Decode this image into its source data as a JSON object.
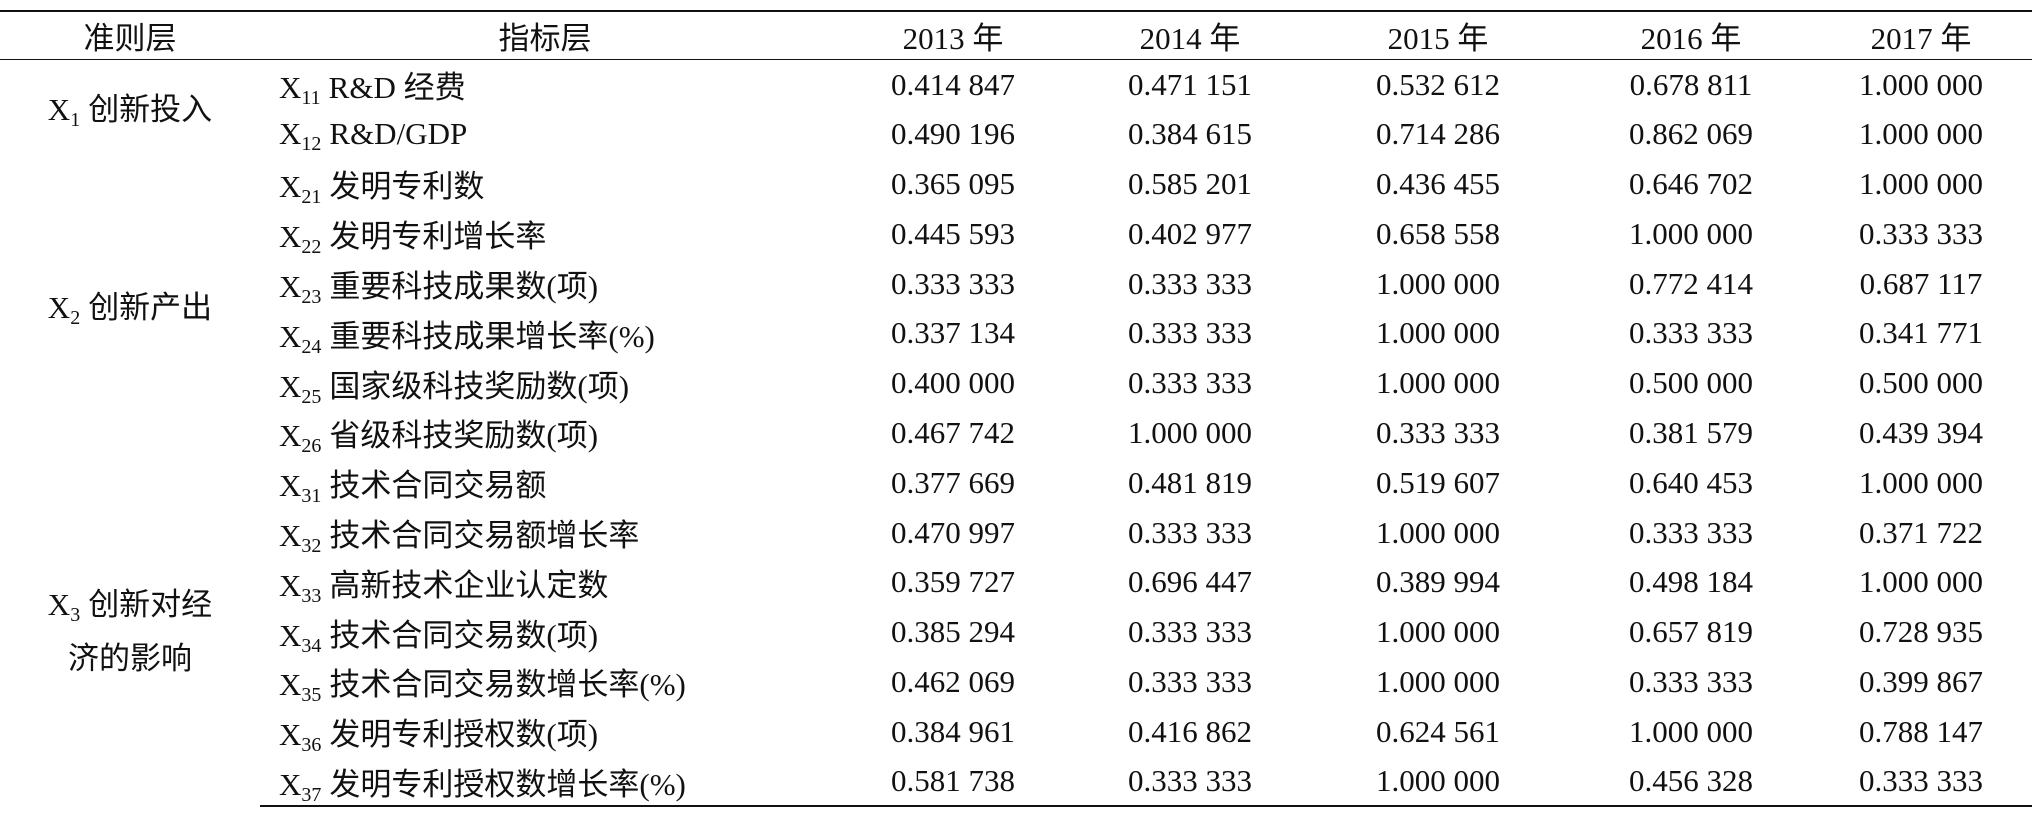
{
  "table": {
    "header": [
      "准则层",
      "指标层",
      "2013 年",
      "2014 年",
      "2015 年",
      "2016 年",
      "2017 年"
    ],
    "groups": [
      {
        "criterion": {
          "sym": "X",
          "sub": "1",
          "label": "创新投入"
        },
        "rows": [
          {
            "indicator": {
              "sym": "X",
              "sub": "11",
              "label": "R&D 经费"
            },
            "values": [
              "0.414 847",
              "0.471 151",
              "0.532 612",
              "0.678 811",
              "1.000 000"
            ]
          },
          {
            "indicator": {
              "sym": "X",
              "sub": "12",
              "label": "R&D/GDP"
            },
            "values": [
              "0.490 196",
              "0.384 615",
              "0.714 286",
              "0.862 069",
              "1.000 000"
            ]
          }
        ]
      },
      {
        "criterion": {
          "sym": "X",
          "sub": "2",
          "label": "创新产出"
        },
        "rows": [
          {
            "indicator": {
              "sym": "X",
              "sub": "21",
              "label": "发明专利数"
            },
            "values": [
              "0.365 095",
              "0.585 201",
              "0.436 455",
              "0.646 702",
              "1.000 000"
            ]
          },
          {
            "indicator": {
              "sym": "X",
              "sub": "22",
              "label": "发明专利增长率"
            },
            "values": [
              "0.445 593",
              "0.402 977",
              "0.658 558",
              "1.000 000",
              "0.333 333"
            ]
          },
          {
            "indicator": {
              "sym": "X",
              "sub": "23",
              "label": "重要科技成果数(项)"
            },
            "values": [
              "0.333 333",
              "0.333 333",
              "1.000 000",
              "0.772 414",
              "0.687 117"
            ]
          },
          {
            "indicator": {
              "sym": "X",
              "sub": "24",
              "label": "重要科技成果增长率(%)"
            },
            "values": [
              "0.337 134",
              "0.333 333",
              "1.000 000",
              "0.333 333",
              "0.341 771"
            ]
          },
          {
            "indicator": {
              "sym": "X",
              "sub": "25",
              "label": "国家级科技奖励数(项)"
            },
            "values": [
              "0.400 000",
              "0.333 333",
              "1.000 000",
              "0.500 000",
              "0.500 000"
            ]
          },
          {
            "indicator": {
              "sym": "X",
              "sub": "26",
              "label": "省级科技奖励数(项)"
            },
            "values": [
              "0.467 742",
              "1.000 000",
              "0.333 333",
              "0.381 579",
              "0.439 394"
            ]
          }
        ]
      },
      {
        "criterion": {
          "sym": "X",
          "sub": "3",
          "label": "创新对经济的影响"
        },
        "rows": [
          {
            "indicator": {
              "sym": "X",
              "sub": "31",
              "label": "技术合同交易额"
            },
            "values": [
              "0.377 669",
              "0.481 819",
              "0.519 607",
              "0.640 453",
              "1.000 000"
            ]
          },
          {
            "indicator": {
              "sym": "X",
              "sub": "32",
              "label": "技术合同交易额增长率"
            },
            "values": [
              "0.470 997",
              "0.333 333",
              "1.000 000",
              "0.333 333",
              "0.371 722"
            ]
          },
          {
            "indicator": {
              "sym": "X",
              "sub": "33",
              "label": "高新技术企业认定数"
            },
            "values": [
              "0.359 727",
              "0.696 447",
              "0.389 994",
              "0.498 184",
              "1.000 000"
            ]
          },
          {
            "indicator": {
              "sym": "X",
              "sub": "34",
              "label": "技术合同交易数(项)"
            },
            "values": [
              "0.385 294",
              "0.333 333",
              "1.000 000",
              "0.657 819",
              "0.728 935"
            ]
          },
          {
            "indicator": {
              "sym": "X",
              "sub": "35",
              "label": "技术合同交易数增长率(%)"
            },
            "values": [
              "0.462 069",
              "0.333 333",
              "1.000 000",
              "0.333 333",
              "0.399 867"
            ]
          },
          {
            "indicator": {
              "sym": "X",
              "sub": "36",
              "label": "发明专利授权数(项)"
            },
            "values": [
              "0.384 961",
              "0.416 862",
              "0.624 561",
              "1.000 000",
              "0.788 147"
            ]
          },
          {
            "indicator": {
              "sym": "X",
              "sub": "37",
              "label": "发明专利授权数增长率(%)"
            },
            "values": [
              "0.581 738",
              "0.333 333",
              "1.000 000",
              "0.456 328",
              "0.333 333"
            ]
          }
        ]
      }
    ]
  }
}
